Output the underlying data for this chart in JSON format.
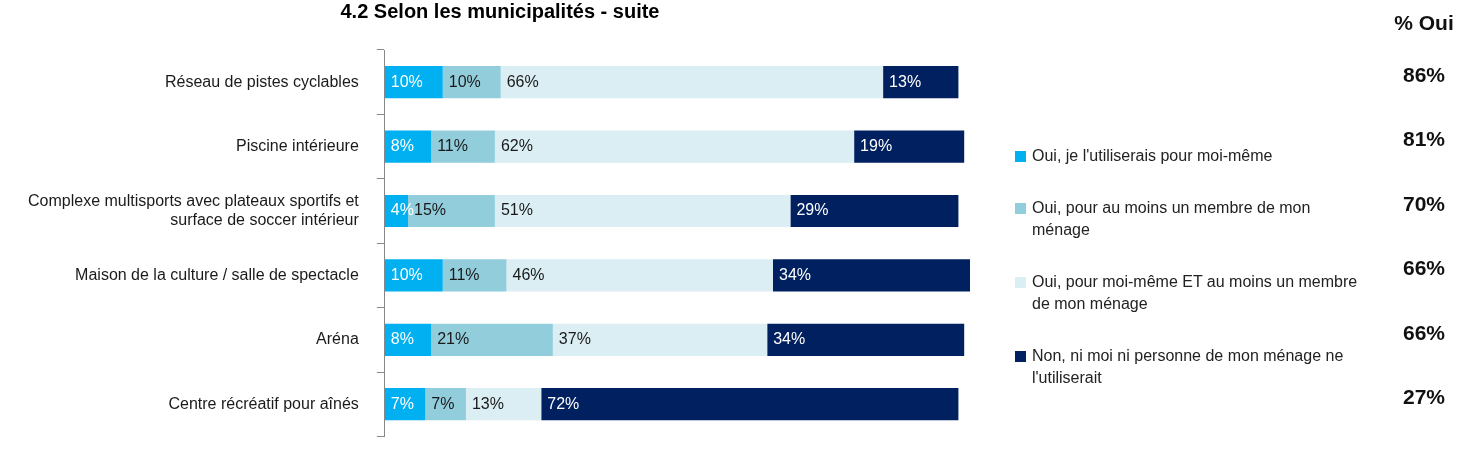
{
  "chart_data": {
    "type": "bar",
    "orientation": "horizontal",
    "stacked": true,
    "title": "4.2 Selon les municipalités - suite",
    "categories": [
      "Réseau de pistes cyclables",
      "Piscine intérieure",
      "Complexe multisports avec plateaux sportifs et surface de soccer intérieur",
      "Maison de la culture / salle de spectacle",
      "Aréna",
      "Centre récréatif pour aînés"
    ],
    "series": [
      {
        "name": "Oui, je l'utiliserais pour moi-même",
        "color": "#00b0f0",
        "values": [
          10,
          8,
          4,
          10,
          8,
          7
        ],
        "value_labels": [
          "10%",
          "8%",
          "4%",
          "10%",
          "8%",
          "7%"
        ]
      },
      {
        "name": "Oui, pour au moins un membre de mon ménage",
        "color": "#92cddc",
        "values": [
          10,
          11,
          15,
          11,
          21,
          7
        ],
        "value_labels": [
          "10%",
          "11%",
          "15%",
          "11%",
          "21%",
          "7%"
        ]
      },
      {
        "name": "Oui, pour moi-même ET au moins un membre de mon ménage",
        "color": "#daeef3",
        "values": [
          66,
          62,
          51,
          46,
          37,
          13
        ],
        "value_labels": [
          "66%",
          "62%",
          "51%",
          "46%",
          "37%",
          "13%"
        ]
      },
      {
        "name": "Non, ni moi ni personne de mon ménage ne l'utiliserait",
        "color": "#002060",
        "values": [
          13,
          19,
          29,
          34,
          34,
          72
        ],
        "value_labels": [
          "13%",
          "19%",
          "29%",
          "34%",
          "34%",
          "72%"
        ]
      }
    ],
    "annotations": [
      "% Oui",
      "86%",
      "81%",
      "70%",
      "66%",
      "66%",
      "27%"
    ],
    "legend": "right"
  }
}
